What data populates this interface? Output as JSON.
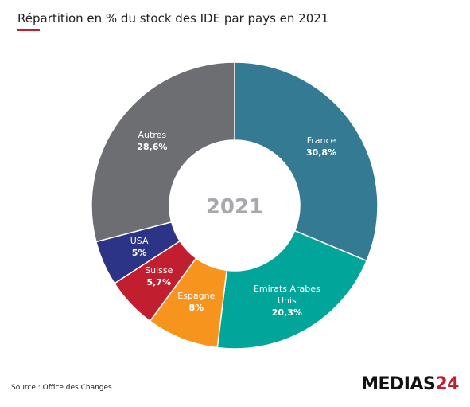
{
  "chart_data": {
    "type": "donut",
    "title": "Répartition en % du stock des IDE par pays en 2021",
    "center_label": "2021",
    "categories": [
      "France",
      "Emirats Arabes Unis",
      "Espagne",
      "Suisse",
      "USA",
      "Autres"
    ],
    "values": [
      30.8,
      20.3,
      8,
      5.7,
      5,
      28.6
    ],
    "value_labels": [
      "30,8%",
      "20,3%",
      "8%",
      "5,7%",
      "5%",
      "28,6%"
    ],
    "colors": [
      "#357a93",
      "#02a599",
      "#f7941d",
      "#c11f2f",
      "#2b3486",
      "#6d6e71"
    ],
    "source": "Source : Office des Changes"
  },
  "logo": {
    "text": "MEDIAS",
    "number": "24"
  }
}
